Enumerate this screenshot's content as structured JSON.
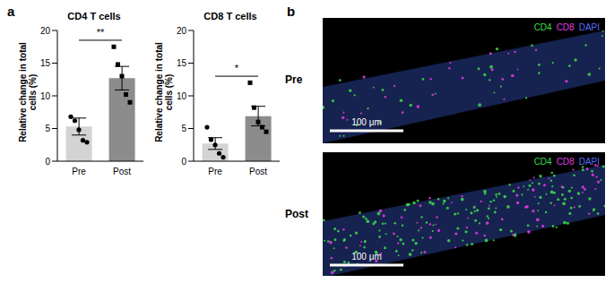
{
  "panel_labels": [
    "a",
    "b"
  ],
  "chart_data": [
    {
      "type": "bar",
      "title": "CD4 T cells",
      "y_label": "Relative change in total cells (%)",
      "categories": [
        "Pre",
        "Post"
      ],
      "values": [
        5.3,
        12.7
      ],
      "errors": [
        1.3,
        1.8
      ],
      "colors": [
        "#d3d3d3",
        "#8c8c8c"
      ],
      "points": [
        {
          "category": "Pre",
          "marker": "circle",
          "values": [
            6.8,
            6.2,
            4.8,
            3.2,
            2.9
          ]
        },
        {
          "category": "Post",
          "marker": "square",
          "values": [
            17.5,
            14.8,
            13.0,
            10.2,
            9.0
          ]
        }
      ],
      "significance": {
        "label": "**",
        "between": [
          "Pre",
          "Post"
        ]
      },
      "ylim": [
        0,
        20
      ],
      "yticks": [
        0,
        5,
        10,
        15,
        20
      ]
    },
    {
      "type": "bar",
      "title": "CD8 T cells",
      "y_label": "Relative change in total cells (%)",
      "categories": [
        "Pre",
        "Post"
      ],
      "values": [
        2.7,
        6.9
      ],
      "errors": [
        0.9,
        1.5
      ],
      "colors": [
        "#d3d3d3",
        "#8c8c8c"
      ],
      "points": [
        {
          "category": "Pre",
          "marker": "circle",
          "values": [
            5.2,
            3.3,
            2.5,
            1.2,
            0.6
          ]
        },
        {
          "category": "Post",
          "marker": "square",
          "values": [
            12.0,
            8.2,
            6.0,
            5.2,
            4.5
          ]
        }
      ],
      "significance": {
        "label": "*",
        "between": [
          "Pre",
          "Post"
        ]
      },
      "ylim": [
        0,
        20
      ],
      "yticks": [
        0,
        5,
        10,
        15,
        20
      ]
    }
  ],
  "images": {
    "rows": [
      "Pre",
      "Post"
    ],
    "channels": [
      {
        "name": "CD4",
        "color": "#3ddc4a"
      },
      {
        "name": "CD8",
        "color": "#e03ce0"
      },
      {
        "name": "DAPI",
        "color": "#5a6cff"
      }
    ],
    "scale_bar": "100 μm"
  }
}
